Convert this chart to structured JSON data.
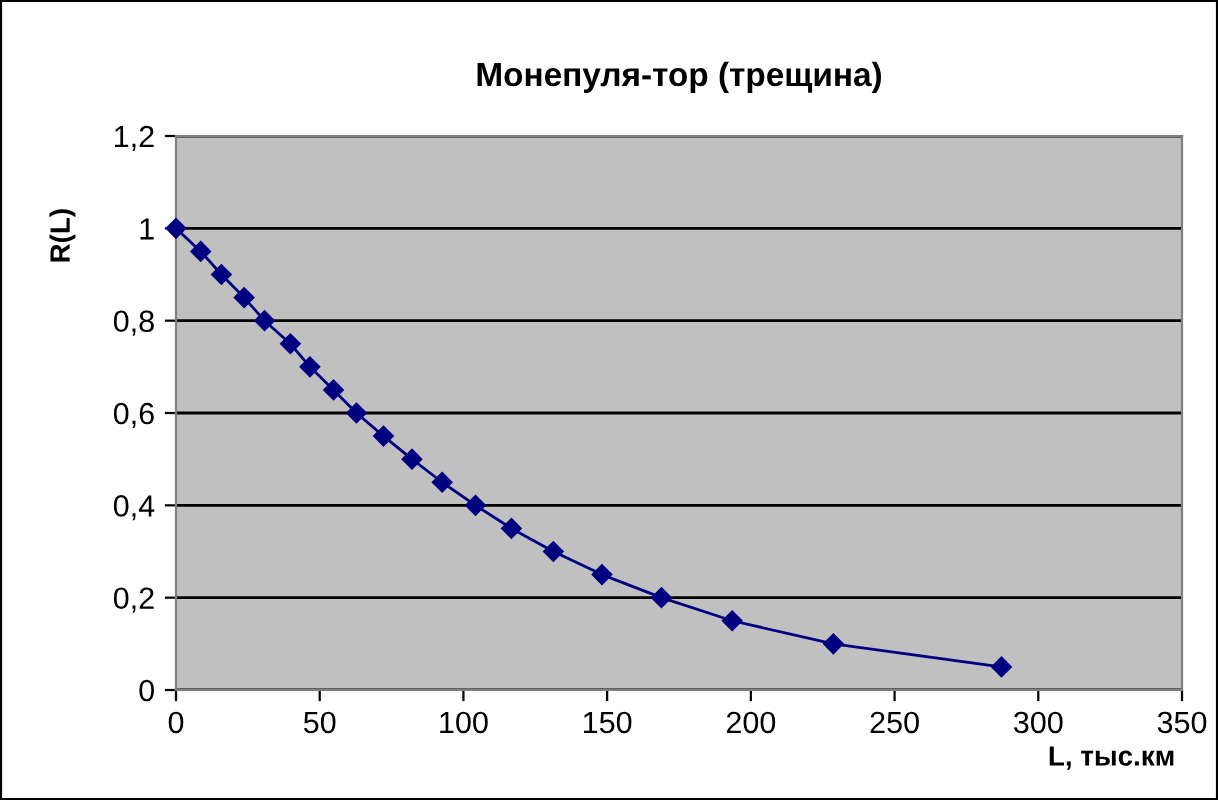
{
  "chart_data": {
    "type": "line",
    "title": "Монепуля-тор (трещина)",
    "xlabel": "L, тыс.км",
    "ylabel": "R(L)",
    "series": [
      {
        "color": "#000080",
        "x": [
          0,
          8.6,
          15.8,
          23.7,
          30.8,
          39.8,
          46.6,
          54.8,
          62.8,
          72.2,
          82.1,
          92.6,
          104.2,
          116.7,
          131.3,
          148.2,
          168.9,
          193.5,
          228.7,
          287.2
        ],
        "values": [
          1,
          0.95,
          0.9,
          0.85,
          0.8,
          0.75,
          0.7,
          0.65,
          0.6,
          0.55,
          0.5,
          0.45,
          0.4,
          0.35,
          0.3,
          0.25,
          0.2,
          0.15,
          0.1,
          0.05
        ]
      }
    ],
    "xlim": [
      0,
      350
    ],
    "xticks": [
      0,
      50,
      100,
      150,
      200,
      250,
      300,
      350
    ],
    "ylim": [
      0,
      1.2
    ],
    "yticks": [
      0,
      {
        "value": 0.2,
        "label": "0,2"
      },
      {
        "value": 0.4,
        "label": "0,4"
      },
      {
        "value": 0.6,
        "label": "0,6"
      },
      {
        "value": 0.8,
        "label": "0,8"
      },
      1,
      {
        "value": 1.2,
        "label": "1,2"
      }
    ],
    "grid": "y",
    "marker": "diamond",
    "line_style": "solid",
    "legend": false
  }
}
